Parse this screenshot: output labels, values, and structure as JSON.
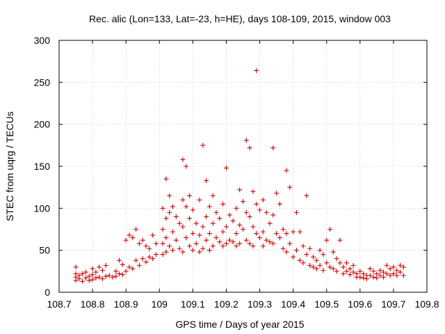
{
  "chart_data": {
    "type": "scatter",
    "title": "Rec. alic (Lon=133, Lat=-23, h=HE), days 108-109, 2015, window 003",
    "xlabel": "GPS time / Days of year 2015",
    "ylabel": "STEC from uqrg / TECUs",
    "xlim": [
      108.7,
      109.8
    ],
    "ylim": [
      0,
      300
    ],
    "xticks": [
      "108.7",
      "108.8",
      "108.9",
      "109",
      "109.1",
      "109.2",
      "109.3",
      "109.4",
      "109.5",
      "109.6",
      "109.7",
      "109.8"
    ],
    "yticks": [
      "0",
      "50",
      "100",
      "150",
      "200",
      "250",
      "300"
    ],
    "grid": true,
    "marker": "plus",
    "color": "#cc0000",
    "series": [
      {
        "points": [
          [
            108.75,
            30
          ],
          [
            108.75,
            22
          ],
          [
            108.75,
            18
          ],
          [
            108.75,
            14
          ],
          [
            108.76,
            20
          ],
          [
            108.76,
            16
          ],
          [
            108.77,
            22
          ],
          [
            108.77,
            13
          ],
          [
            108.78,
            24
          ],
          [
            108.78,
            17
          ],
          [
            108.79,
            19
          ],
          [
            108.79,
            14
          ],
          [
            108.8,
            28
          ],
          [
            108.8,
            21
          ],
          [
            108.8,
            15
          ],
          [
            108.81,
            24
          ],
          [
            108.81,
            17
          ],
          [
            108.82,
            30
          ],
          [
            108.82,
            18
          ],
          [
            108.83,
            26
          ],
          [
            108.83,
            16
          ],
          [
            108.84,
            32
          ],
          [
            108.84,
            19
          ],
          [
            108.85,
            20
          ],
          [
            108.86,
            18
          ],
          [
            108.87,
            25
          ],
          [
            108.87,
            19
          ],
          [
            108.88,
            38
          ],
          [
            108.88,
            22
          ],
          [
            108.89,
            33
          ],
          [
            108.89,
            21
          ],
          [
            108.9,
            62
          ],
          [
            108.9,
            25
          ],
          [
            108.91,
            68
          ],
          [
            108.91,
            30
          ],
          [
            108.92,
            65
          ],
          [
            108.92,
            28
          ],
          [
            108.93,
            75
          ],
          [
            108.93,
            38
          ],
          [
            108.94,
            58
          ],
          [
            108.94,
            32
          ],
          [
            108.95,
            62
          ],
          [
            108.95,
            40
          ],
          [
            108.96,
            55
          ],
          [
            108.96,
            36
          ],
          [
            108.97,
            52
          ],
          [
            108.97,
            42
          ],
          [
            108.98,
            68
          ],
          [
            108.98,
            40
          ],
          [
            108.99,
            58
          ],
          [
            108.99,
            45
          ],
          [
            109.01,
            100
          ],
          [
            109.01,
            75
          ],
          [
            109.01,
            58
          ],
          [
            109.01,
            45
          ],
          [
            109.02,
            135
          ],
          [
            109.02,
            88
          ],
          [
            109.02,
            65
          ],
          [
            109.02,
            48
          ],
          [
            109.03,
            115
          ],
          [
            109.03,
            95
          ],
          [
            109.03,
            55
          ],
          [
            109.04,
            102
          ],
          [
            109.04,
            72
          ],
          [
            109.04,
            50
          ],
          [
            109.05,
            90
          ],
          [
            109.05,
            62
          ],
          [
            109.06,
            82
          ],
          [
            109.06,
            52
          ],
          [
            109.07,
            158
          ],
          [
            109.07,
            110
          ],
          [
            109.07,
            78
          ],
          [
            109.07,
            48
          ],
          [
            109.08,
            150
          ],
          [
            109.08,
            102
          ],
          [
            109.08,
            65
          ],
          [
            109.09,
            115
          ],
          [
            109.09,
            88
          ],
          [
            109.09,
            55
          ],
          [
            109.1,
            98
          ],
          [
            109.1,
            70
          ],
          [
            109.1,
            50
          ],
          [
            109.11,
            82
          ],
          [
            109.11,
            58
          ],
          [
            109.12,
            110
          ],
          [
            109.12,
            68
          ],
          [
            109.12,
            48
          ],
          [
            109.13,
            175
          ],
          [
            109.13,
            78
          ],
          [
            109.13,
            52
          ],
          [
            109.14,
            133
          ],
          [
            109.14,
            90
          ],
          [
            109.14,
            62
          ],
          [
            109.15,
            102
          ],
          [
            109.15,
            70
          ],
          [
            109.15,
            50
          ],
          [
            109.16,
            115
          ],
          [
            109.16,
            82
          ],
          [
            109.16,
            55
          ],
          [
            109.17,
            95
          ],
          [
            109.17,
            65
          ],
          [
            109.18,
            88
          ],
          [
            109.18,
            60
          ],
          [
            109.19,
            105
          ],
          [
            109.19,
            72
          ],
          [
            109.19,
            55
          ],
          [
            109.2,
            148
          ],
          [
            109.2,
            78
          ],
          [
            109.2,
            58
          ],
          [
            109.21,
            92
          ],
          [
            109.21,
            62
          ],
          [
            109.22,
            85
          ],
          [
            109.22,
            60
          ],
          [
            109.23,
            100
          ],
          [
            109.23,
            70
          ],
          [
            109.23,
            55
          ],
          [
            109.24,
            122
          ],
          [
            109.24,
            80
          ],
          [
            109.24,
            58
          ],
          [
            109.25,
            108
          ],
          [
            109.25,
            75
          ],
          [
            109.26,
            181
          ],
          [
            109.26,
            95
          ],
          [
            109.26,
            62
          ],
          [
            109.27,
            172
          ],
          [
            109.27,
            90
          ],
          [
            109.27,
            58
          ],
          [
            109.28,
            120
          ],
          [
            109.28,
            78
          ],
          [
            109.28,
            55
          ],
          [
            109.29,
            264
          ],
          [
            109.29,
            105
          ],
          [
            109.29,
            70
          ],
          [
            109.3,
            98
          ],
          [
            109.3,
            65
          ],
          [
            109.31,
            110
          ],
          [
            109.31,
            72
          ],
          [
            109.31,
            55
          ],
          [
            109.32,
            95
          ],
          [
            109.32,
            62
          ],
          [
            109.33,
            82
          ],
          [
            109.33,
            60
          ],
          [
            109.34,
            172
          ],
          [
            109.34,
            92
          ],
          [
            109.34,
            58
          ],
          [
            109.35,
            118
          ],
          [
            109.35,
            70
          ],
          [
            109.36,
            105
          ],
          [
            109.36,
            65
          ],
          [
            109.37,
            75
          ],
          [
            109.37,
            52
          ],
          [
            109.38,
            145
          ],
          [
            109.38,
            70
          ],
          [
            109.38,
            48
          ],
          [
            109.39,
            125
          ],
          [
            109.39,
            58
          ],
          [
            109.4,
            72
          ],
          [
            109.4,
            42
          ],
          [
            109.41,
            95
          ],
          [
            109.41,
            50
          ],
          [
            109.42,
            72
          ],
          [
            109.42,
            38
          ],
          [
            109.43,
            55
          ],
          [
            109.43,
            35
          ],
          [
            109.44,
            115
          ],
          [
            109.44,
            45
          ],
          [
            109.45,
            52
          ],
          [
            109.45,
            32
          ],
          [
            109.46,
            42
          ],
          [
            109.46,
            30
          ],
          [
            109.47,
            38
          ],
          [
            109.47,
            28
          ],
          [
            109.48,
            50
          ],
          [
            109.48,
            32
          ],
          [
            109.49,
            45
          ],
          [
            109.49,
            26
          ],
          [
            109.5,
            62
          ],
          [
            109.5,
            35
          ],
          [
            109.51,
            75
          ],
          [
            109.51,
            30
          ],
          [
            109.52,
            48
          ],
          [
            109.52,
            28
          ],
          [
            109.53,
            40
          ],
          [
            109.53,
            25
          ],
          [
            109.54,
            62
          ],
          [
            109.54,
            35
          ],
          [
            109.55,
            30
          ],
          [
            109.55,
            22
          ],
          [
            109.56,
            35
          ],
          [
            109.56,
            25
          ],
          [
            109.57,
            28
          ],
          [
            109.57,
            21
          ],
          [
            109.58,
            32
          ],
          [
            109.58,
            24
          ],
          [
            109.59,
            22
          ],
          [
            109.59,
            18
          ],
          [
            109.6,
            25
          ],
          [
            109.6,
            18
          ],
          [
            109.61,
            22
          ],
          [
            109.61,
            17
          ],
          [
            109.62,
            20
          ],
          [
            109.62,
            16
          ],
          [
            109.63,
            28
          ],
          [
            109.63,
            20
          ],
          [
            109.64,
            25
          ],
          [
            109.64,
            18
          ],
          [
            109.65,
            22
          ],
          [
            109.65,
            17
          ],
          [
            109.66,
            26
          ],
          [
            109.66,
            20
          ],
          [
            109.67,
            24
          ],
          [
            109.67,
            18
          ],
          [
            109.68,
            32
          ],
          [
            109.68,
            22
          ],
          [
            109.69,
            28
          ],
          [
            109.69,
            20
          ],
          [
            109.7,
            30
          ],
          [
            109.7,
            22
          ],
          [
            109.71,
            26
          ],
          [
            109.71,
            20
          ],
          [
            109.72,
            32
          ],
          [
            109.72,
            24
          ],
          [
            109.73,
            30
          ],
          [
            109.73,
            20
          ]
        ]
      }
    ]
  }
}
